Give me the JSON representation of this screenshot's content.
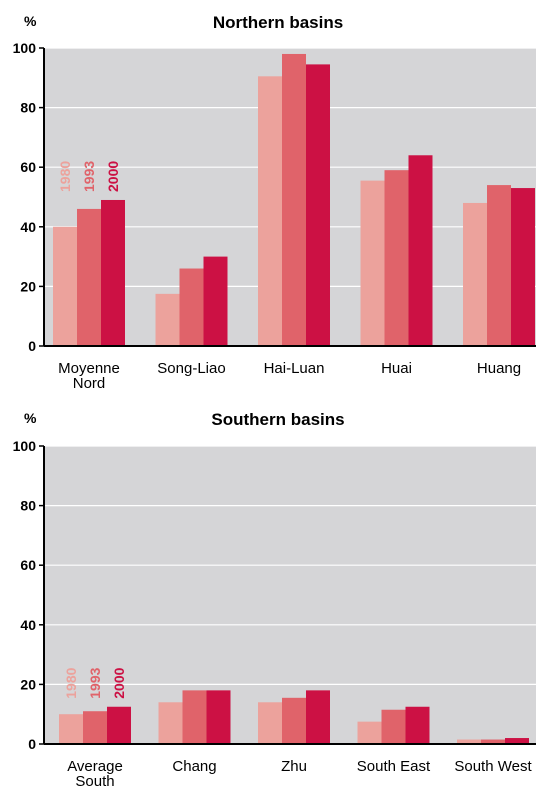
{
  "colors": {
    "plot_bg": "#d5d5d7",
    "grid": "#ffffff",
    "axis": "#000000",
    "series": [
      "#eca29c",
      "#e0636a",
      "#cc1144"
    ]
  },
  "chart_data": [
    {
      "type": "bar",
      "title": "Northern basins",
      "ylabel": "%",
      "ylim": [
        0,
        100
      ],
      "yticks": [
        0,
        20,
        40,
        60,
        80,
        100
      ],
      "grid": true,
      "categories": [
        [
          "Moyenne",
          "Nord"
        ],
        [
          "Song-Liao"
        ],
        [
          "Hai-Luan"
        ],
        [
          "Huai"
        ],
        [
          "Huang"
        ]
      ],
      "series": [
        {
          "name": "1980",
          "values": [
            40,
            17.5,
            90.5,
            55.5,
            48
          ]
        },
        {
          "name": "1993",
          "values": [
            46,
            26,
            98,
            59,
            54
          ]
        },
        {
          "name": "2000",
          "values": [
            49,
            30,
            94.5,
            64,
            53
          ]
        }
      ],
      "legend": "vertical labels above first category"
    },
    {
      "type": "bar",
      "title": "Southern basins",
      "ylabel": "%",
      "ylim": [
        0,
        100
      ],
      "yticks": [
        0,
        20,
        40,
        60,
        80,
        100
      ],
      "grid": true,
      "categories": [
        [
          "Average",
          "South"
        ],
        [
          "Chang"
        ],
        [
          "Zhu"
        ],
        [
          "South East"
        ],
        [
          "South West"
        ]
      ],
      "series": [
        {
          "name": "1980",
          "values": [
            10,
            14,
            14,
            7.5,
            1.5
          ]
        },
        {
          "name": "1993",
          "values": [
            11,
            18,
            15.5,
            11.5,
            1.5
          ]
        },
        {
          "name": "2000",
          "values": [
            12.5,
            18,
            18,
            12.5,
            2
          ]
        }
      ],
      "legend": "vertical labels above first category"
    }
  ]
}
